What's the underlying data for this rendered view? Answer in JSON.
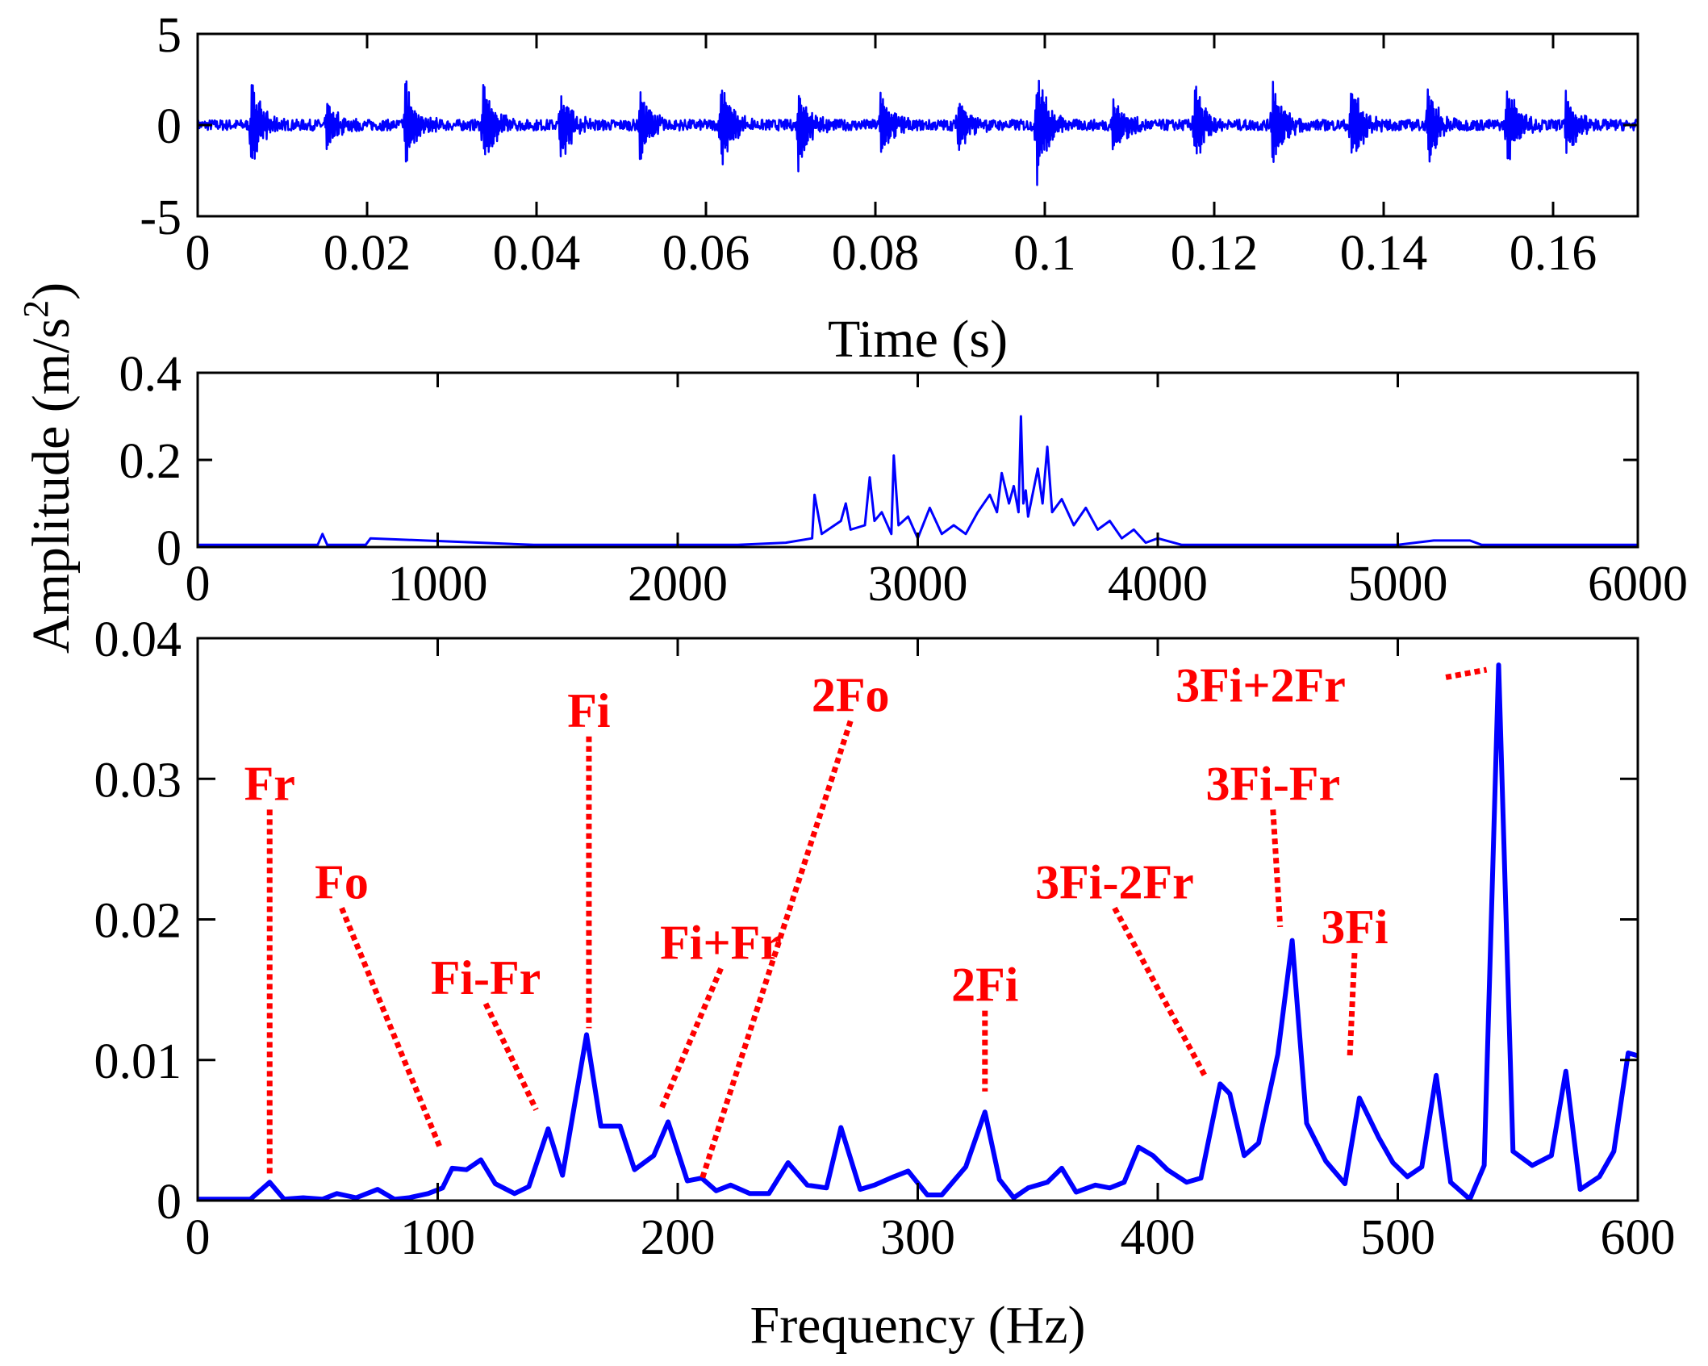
{
  "chart_data": [
    {
      "type": "line",
      "xlabel": "Time (s)",
      "ylabel": "",
      "xlim": [
        0,
        0.17
      ],
      "ylim": [
        -5,
        5
      ],
      "xticks": [
        "0",
        "0.02",
        "0.04",
        "0.06",
        "0.08",
        "0.1",
        "0.12",
        "0.14",
        "0.16"
      ],
      "yticks": [
        "-5",
        "0",
        "5"
      ],
      "grid": false,
      "series": [
        {
          "burst_times": [
            0.0063,
            0.0152,
            0.0245,
            0.0337,
            0.0428,
            0.0522,
            0.0617,
            0.0709,
            0.0806,
            0.0897,
            0.099,
            0.108,
            0.1176,
            0.1268,
            0.1361,
            0.1452,
            0.1545,
            0.1615
          ],
          "burst_peaks": [
            2.6,
            1.4,
            2.6,
            2.6,
            2.3,
            2.0,
            2.7,
            2.4,
            2.0,
            1.8,
            3.4,
            2.0,
            2.5,
            2.8,
            2.7,
            2.3,
            2.4,
            2.0
          ],
          "baseline_level": 0.3
        }
      ]
    },
    {
      "type": "line",
      "xlabel": "",
      "ylabel": "",
      "xlim": [
        0,
        6000
      ],
      "ylim": [
        0,
        0.4
      ],
      "xticks": [
        "0",
        "1000",
        "2000",
        "3000",
        "4000",
        "5000",
        "6000"
      ],
      "yticks": [
        "0",
        "0.2",
        "0.4"
      ],
      "grid": false,
      "series": [
        {
          "x": [
            0,
            500,
            520,
            540,
            700,
            720,
            1400,
            2250,
            2450,
            2560,
            2570,
            2600,
            2680,
            2700,
            2720,
            2780,
            2800,
            2820,
            2850,
            2890,
            2900,
            2920,
            2960,
            3000,
            3050,
            3100,
            3150,
            3200,
            3250,
            3300,
            3330,
            3350,
            3380,
            3400,
            3420,
            3430,
            3440,
            3450,
            3460,
            3500,
            3520,
            3540,
            3560,
            3600,
            3650,
            3700,
            3750,
            3800,
            3850,
            3900,
            3950,
            4000,
            4100,
            4500,
            5000,
            5150,
            5300,
            5350,
            6000
          ],
          "y": [
            0.005,
            0.005,
            0.03,
            0.005,
            0.005,
            0.02,
            0.005,
            0.005,
            0.01,
            0.02,
            0.12,
            0.03,
            0.06,
            0.1,
            0.04,
            0.05,
            0.16,
            0.06,
            0.08,
            0.03,
            0.21,
            0.05,
            0.07,
            0.02,
            0.09,
            0.03,
            0.05,
            0.03,
            0.08,
            0.12,
            0.08,
            0.17,
            0.1,
            0.14,
            0.08,
            0.3,
            0.1,
            0.13,
            0.07,
            0.18,
            0.1,
            0.23,
            0.08,
            0.11,
            0.05,
            0.09,
            0.04,
            0.06,
            0.02,
            0.04,
            0.01,
            0.02,
            0.005,
            0.005,
            0.005,
            0.015,
            0.015,
            0.005,
            0.005
          ]
        }
      ]
    },
    {
      "type": "line",
      "xlabel": "Frequency (Hz)",
      "ylabel": "",
      "xlim": [
        0,
        600
      ],
      "ylim": [
        0,
        0.04
      ],
      "xticks": [
        "0",
        "100",
        "200",
        "300",
        "400",
        "500",
        "600"
      ],
      "yticks": [
        "0",
        "0.01",
        "0.02",
        "0.03",
        "0.04"
      ],
      "grid": false,
      "series": [
        {
          "x": [
            0,
            10,
            22,
            30,
            36,
            44,
            52,
            58,
            66,
            75,
            82,
            88,
            96,
            102,
            106,
            112,
            118,
            124,
            132,
            138,
            146,
            152,
            162,
            168,
            176,
            182,
            190,
            196,
            204,
            210,
            216,
            222,
            230,
            238,
            246,
            254,
            262,
            268,
            276,
            282,
            290,
            296,
            304,
            310,
            320,
            328,
            334,
            340,
            346,
            354,
            360,
            366,
            374,
            380,
            386,
            392,
            398,
            404,
            412,
            418,
            426,
            430,
            436,
            442,
            450,
            456,
            462,
            470,
            478,
            484,
            492,
            498,
            504,
            510,
            516,
            522,
            530,
            536,
            542,
            548,
            556,
            564,
            570,
            576,
            584,
            590,
            596,
            600
          ],
          "y": [
            0.0001,
            0.0001,
            0.0001,
            0.0013,
            0.0001,
            0.0002,
            0.0001,
            0.0005,
            0.0002,
            0.0008,
            0.0001,
            0.0002,
            0.0005,
            0.0009,
            0.0023,
            0.0022,
            0.0029,
            0.0012,
            0.0005,
            0.001,
            0.0051,
            0.0018,
            0.0118,
            0.0053,
            0.0053,
            0.0022,
            0.0032,
            0.0056,
            0.0014,
            0.0016,
            0.0007,
            0.0011,
            0.0005,
            0.0005,
            0.0027,
            0.0011,
            0.0009,
            0.0052,
            0.0008,
            0.0011,
            0.0017,
            0.0021,
            0.0004,
            0.0004,
            0.0024,
            0.0063,
            0.0015,
            0.0002,
            0.0009,
            0.0013,
            0.0023,
            0.0006,
            0.0011,
            0.0009,
            0.0013,
            0.0038,
            0.0032,
            0.0022,
            0.0013,
            0.0016,
            0.0083,
            0.0076,
            0.0032,
            0.0041,
            0.0104,
            0.0185,
            0.0055,
            0.0028,
            0.0012,
            0.0073,
            0.0045,
            0.0027,
            0.0017,
            0.0024,
            0.0089,
            0.0013,
            0.0001,
            0.0025,
            0.0381,
            0.0035,
            0.0025,
            0.0032,
            0.0092,
            0.0008,
            0.0017,
            0.0035,
            0.0105,
            0.0103
          ]
        }
      ],
      "annotations": [
        {
          "label": "Fr",
          "peak": [
            30,
            0.0013
          ],
          "text_at": [
            30,
            0.0285
          ]
        },
        {
          "label": "Fo",
          "peak": [
            101,
            0.0033
          ],
          "text_at": [
            60,
            0.0215
          ]
        },
        {
          "label": "Fi-Fr",
          "peak": [
            141,
            0.006
          ],
          "text_at": [
            120,
            0.0147
          ]
        },
        {
          "label": "Fi",
          "peak": [
            163,
            0.0118
          ],
          "text_at": [
            163,
            0.0337
          ]
        },
        {
          "label": "Fi+Fr",
          "peak": [
            193,
            0.006
          ],
          "text_at": [
            218,
            0.0172
          ]
        },
        {
          "label": "2Fo",
          "peak": [
            210,
            0.001
          ],
          "text_at": [
            272,
            0.0348
          ]
        },
        {
          "label": "2Fi",
          "peak": [
            328,
            0.0073
          ],
          "text_at": [
            328,
            0.0142
          ]
        },
        {
          "label": "3Fi-2Fr",
          "peak": [
            420,
            0.0083
          ],
          "text_at": [
            382,
            0.0215
          ]
        },
        {
          "label": "3Fi-Fr",
          "peak": [
            451,
            0.019
          ],
          "text_at": [
            448,
            0.0285
          ]
        },
        {
          "label": "3Fi",
          "peak": [
            480,
            0.0097
          ],
          "text_at": [
            482,
            0.0183
          ]
        },
        {
          "label": "3Fi+2Fr",
          "peak": [
            537,
            0.0373
          ],
          "text_at": [
            436,
            0.0355
          ]
        }
      ]
    }
  ],
  "shared_ylabel": "Amplitude (m/s",
  "shared_ylabel_superscript": "2",
  "shared_ylabel_close": ")",
  "colors": {
    "series": "#0000ff",
    "annotation": "#ff0000",
    "axes": "#000000"
  }
}
